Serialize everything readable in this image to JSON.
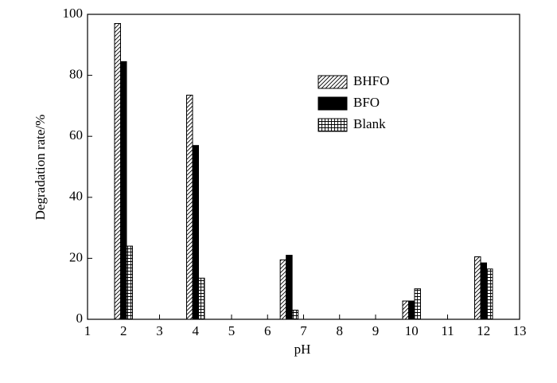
{
  "chart_data": {
    "type": "bar",
    "x_label": "pH",
    "y_label": "Degradation rate/%",
    "x": [
      2,
      4,
      6.6,
      10,
      12
    ],
    "series": [
      {
        "name": "BHFO",
        "color": "#000000",
        "pattern": "diagonal",
        "values": [
          97,
          73.5,
          19.5,
          6,
          20.5
        ]
      },
      {
        "name": "BFO",
        "color": "#000000",
        "pattern": "solid",
        "values": [
          84.5,
          57,
          21,
          6,
          18.5
        ]
      },
      {
        "name": "Blank",
        "color": "#000000",
        "pattern": "grid",
        "values": [
          24,
          13.5,
          3,
          10,
          16.5
        ]
      }
    ],
    "xlim": [
      1,
      13
    ],
    "xticks": [
      1,
      2,
      3,
      4,
      5,
      6,
      7,
      8,
      9,
      10,
      11,
      12,
      13
    ],
    "ylim": [
      0,
      100
    ],
    "yticks": [
      0,
      20,
      40,
      60,
      80,
      100
    ]
  }
}
